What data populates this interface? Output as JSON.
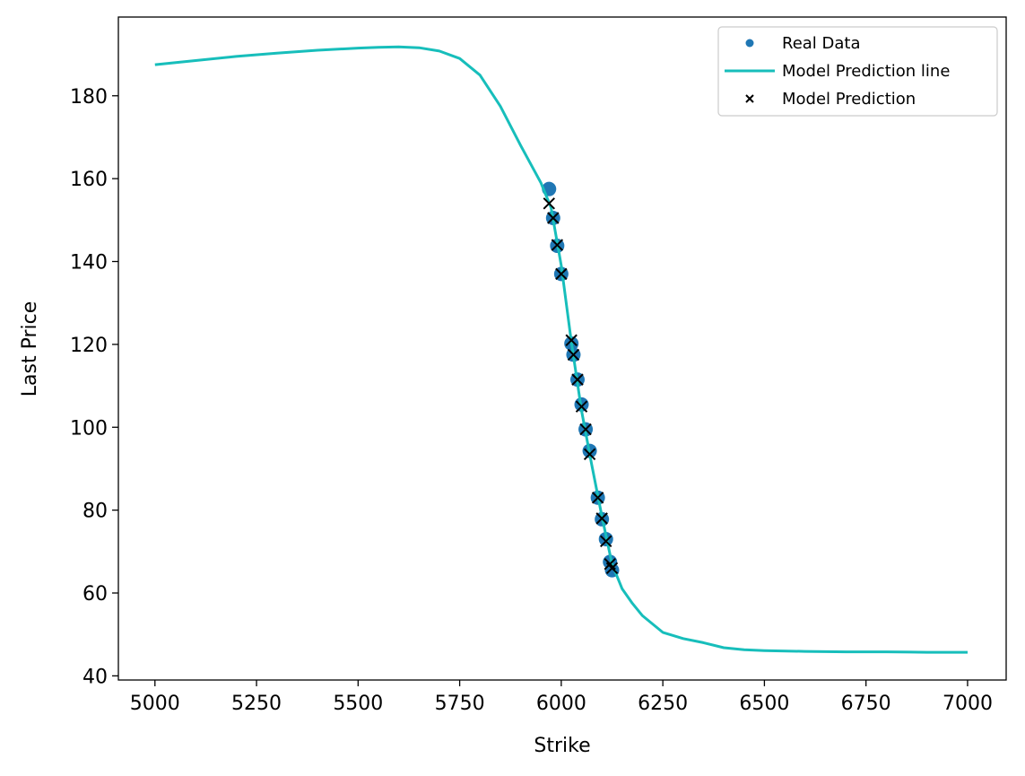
{
  "chart_data": {
    "type": "scatter",
    "title": "",
    "xlabel": "Strike",
    "ylabel": "Last Price",
    "xlim": [
      4910,
      7095
    ],
    "ylim": [
      39,
      199
    ],
    "xticks": [
      5000,
      5250,
      5500,
      5750,
      6000,
      6250,
      6500,
      6750,
      7000
    ],
    "yticks": [
      40,
      60,
      80,
      100,
      120,
      140,
      160,
      180
    ],
    "grid": false,
    "legend_position": "top-right",
    "series": [
      {
        "name": "Real Data",
        "kind": "scatter",
        "marker": "circle",
        "color": "#1f77b4",
        "x": [
          5970,
          5980,
          5990,
          6000,
          6025,
          6030,
          6040,
          6050,
          6060,
          6070,
          6090,
          6100,
          6110,
          6120,
          6125
        ],
        "y": [
          157.5,
          150.5,
          143.8,
          137.0,
          120.2,
          117.5,
          111.5,
          105.5,
          99.5,
          94.3,
          83.0,
          77.8,
          73.0,
          67.5,
          65.5
        ]
      },
      {
        "name": "Model Prediction line",
        "kind": "line",
        "color": "#17bebb",
        "x": [
          5000,
          5100,
          5200,
          5300,
          5400,
          5500,
          5550,
          5600,
          5650,
          5700,
          5750,
          5800,
          5850,
          5900,
          5950,
          5975,
          6000,
          6025,
          6050,
          6075,
          6100,
          6125,
          6150,
          6175,
          6200,
          6250,
          6300,
          6350,
          6400,
          6450,
          6500,
          6600,
          6700,
          6800,
          6900,
          7000
        ],
        "y": [
          187.5,
          188.5,
          189.5,
          190.3,
          191.0,
          191.5,
          191.7,
          191.8,
          191.6,
          190.8,
          189.0,
          185.0,
          177.5,
          168.0,
          159.0,
          153.0,
          139.0,
          120.5,
          104.0,
          91.0,
          78.5,
          67.0,
          61.0,
          57.5,
          54.5,
          50.5,
          49.0,
          48.0,
          46.8,
          46.3,
          46.1,
          45.9,
          45.8,
          45.8,
          45.7,
          45.7
        ]
      },
      {
        "name": "Model Prediction",
        "kind": "scatter",
        "marker": "x",
        "color": "#000000",
        "x": [
          5970,
          5980,
          5990,
          6000,
          6025,
          6030,
          6040,
          6050,
          6060,
          6070,
          6090,
          6100,
          6110,
          6120,
          6125
        ],
        "y": [
          154.0,
          150.5,
          144.0,
          137.0,
          121.0,
          117.5,
          111.5,
          105.0,
          99.5,
          93.5,
          83.0,
          78.0,
          72.5,
          67.0,
          66.0
        ]
      }
    ]
  }
}
